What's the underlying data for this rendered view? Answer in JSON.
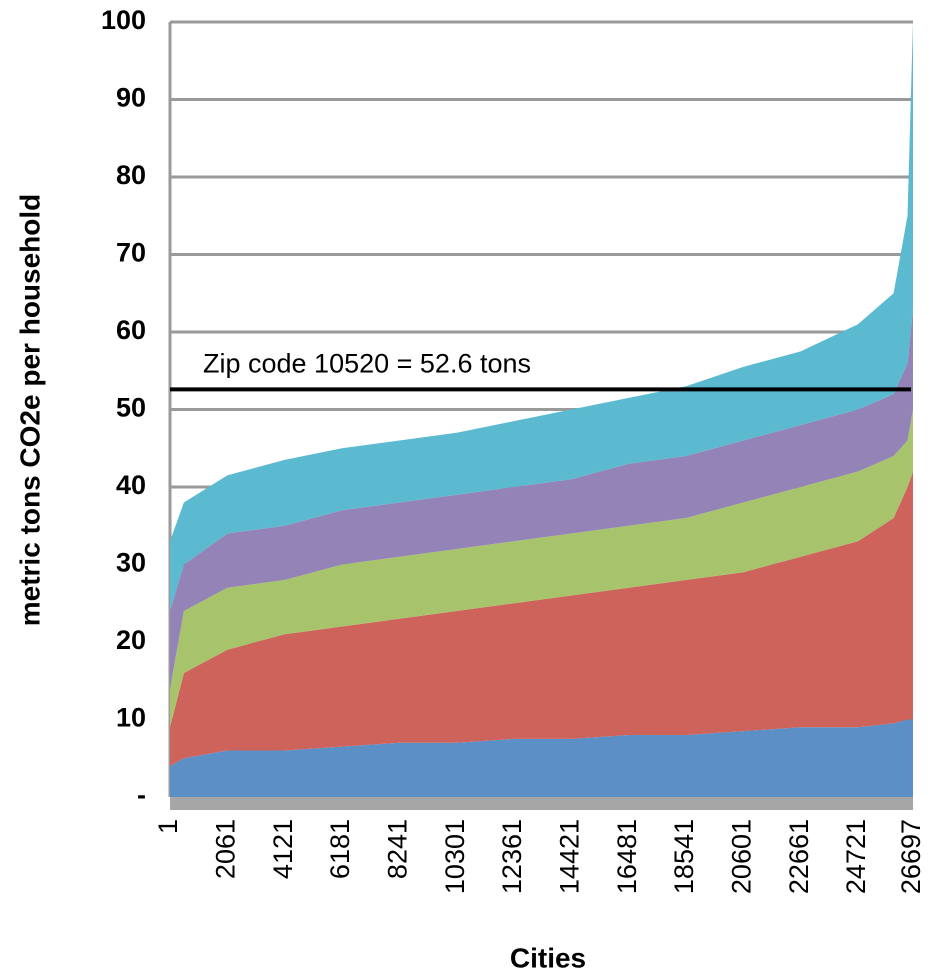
{
  "chart_data": {
    "type": "stacked-area",
    "x_label": "Cities",
    "y_label": "metric tons CO2e per household",
    "x": [
      1,
      500,
      2061,
      4121,
      6181,
      8241,
      10301,
      12361,
      14421,
      16481,
      18541,
      20601,
      22661,
      24721,
      26000,
      26500,
      26697
    ],
    "series": [
      {
        "color": "#5b8fc6",
        "values": [
          4,
          5,
          6,
          6,
          6.5,
          7,
          7,
          7.5,
          7.5,
          8,
          8,
          8.5,
          9,
          9,
          9.5,
          10,
          10
        ]
      },
      {
        "color": "#cd635b",
        "values": [
          5,
          11,
          13,
          15,
          15.5,
          16,
          17,
          17.5,
          18.5,
          19,
          20,
          20.5,
          22,
          24,
          26.5,
          30,
          32
        ]
      },
      {
        "color": "#a7c46c",
        "values": [
          5,
          8,
          8,
          7,
          8,
          8,
          8,
          8,
          8,
          8,
          8,
          9,
          9,
          9,
          8,
          6,
          8
        ]
      },
      {
        "color": "#9483b6",
        "values": [
          10,
          6,
          7,
          7,
          7,
          7,
          7,
          7,
          7,
          8,
          8,
          8,
          8,
          8,
          8,
          10,
          13
        ]
      },
      {
        "color": "#5bb9d0",
        "values": [
          9,
          8,
          7.5,
          8.5,
          8,
          8,
          8,
          8.5,
          9,
          8.5,
          9,
          9.5,
          9.5,
          11,
          13,
          19,
          37
        ]
      }
    ],
    "xlim": [
      1,
      26697
    ],
    "xticks": [
      1,
      2061,
      4121,
      6181,
      8241,
      10301,
      12361,
      14421,
      16481,
      18541,
      20601,
      22661,
      24721,
      26697
    ],
    "ylim": [
      0,
      100
    ],
    "yticks": [
      {
        "value": 0,
        "label": "-"
      },
      10,
      20,
      30,
      40,
      50,
      60,
      70,
      80,
      90,
      100
    ],
    "grid": true,
    "annotations": [
      {
        "text": "Zip code 10520 = 52.6 tons",
        "value": 52.6
      }
    ]
  }
}
